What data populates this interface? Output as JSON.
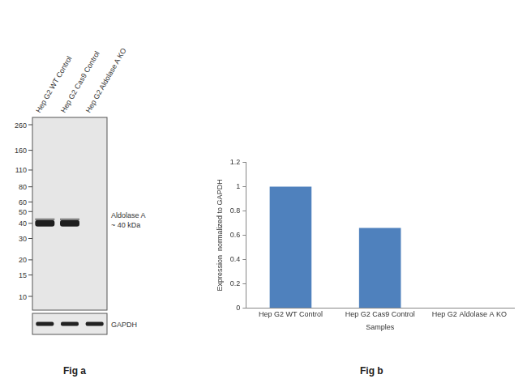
{
  "blot": {
    "lanes": [
      "Hep G2 WT Control",
      "Hep G2 Cas9 Control",
      "Hep G2 Aldolase A KO"
    ],
    "markers_kda": [
      260,
      160,
      110,
      80,
      60,
      50,
      40,
      30,
      20,
      15,
      10
    ],
    "band": {
      "name": "Aldolase A",
      "size_label": "~ 40 kDa",
      "kda": 40,
      "present": [
        true,
        true,
        false
      ]
    },
    "loading_control": {
      "name": "GAPDH",
      "present": [
        true,
        true,
        true
      ]
    }
  },
  "panel_labels": [
    "Fig a",
    "Fig b"
  ],
  "chart_data": {
    "type": "bar",
    "categories": [
      "Hep G2 WT Control",
      "Hep G2 Cas9 Control",
      "Hep G2 Aldolase A KO"
    ],
    "values": [
      1,
      0.66,
      0
    ],
    "color": "#4f81bd",
    "x_label": "Samples",
    "y_label": "Expression  normalized to GAPDH",
    "ylim": [
      0,
      1.2
    ],
    "yticks": [
      0,
      0.2,
      0.4,
      0.6,
      0.8,
      1,
      1.2
    ],
    "grid": false
  }
}
